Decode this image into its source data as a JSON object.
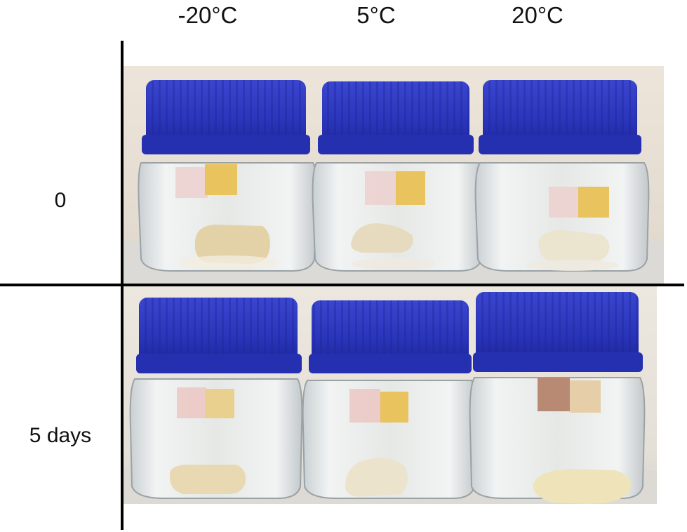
{
  "columns": [
    "-20°C",
    "5°C",
    "20°C"
  ],
  "rows": [
    "0",
    "5 days"
  ],
  "colors": {
    "cap_blue": "#2833b8",
    "cap_dark": "#1a2290",
    "background_top": "#e9e1d6",
    "background_bottom": "#e7e3dd",
    "glass": "#dfe4e6",
    "sample_cream": "#e8d9b5",
    "indicator_pink": "#e9c9c6",
    "indicator_yellow": "#e9c56a",
    "indicator_brown": "#b78a73"
  }
}
